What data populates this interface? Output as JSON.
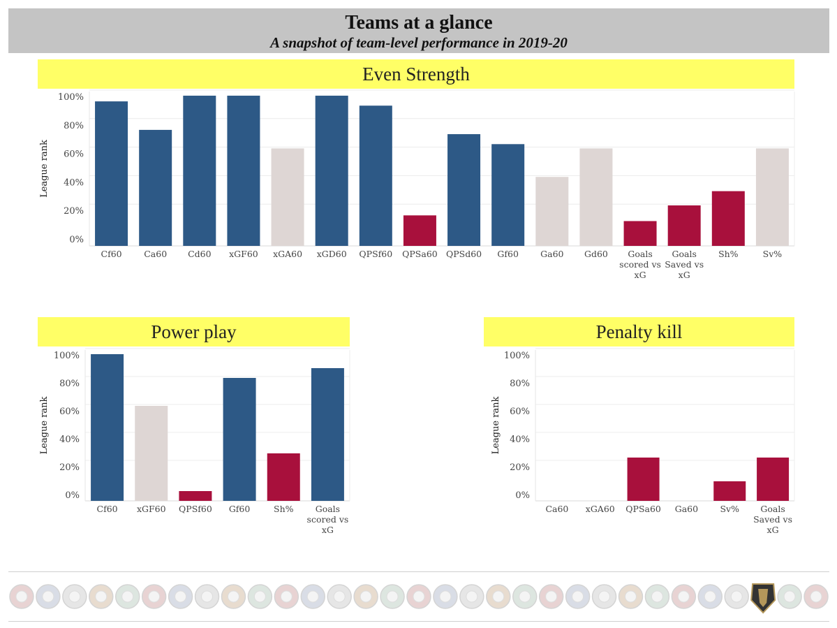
{
  "header": {
    "title": "Teams at a glance",
    "subtitle": "A snapshot of team-level performance in 2019-20"
  },
  "colors": {
    "blue": "#2d5986",
    "grey": "#ded6d4",
    "red": "#a8103c",
    "yellow": "#ffff66"
  },
  "chart_data": [
    {
      "type": "bar",
      "title": "Even Strength",
      "ylabel": "League rank",
      "ylim": [
        0,
        100
      ],
      "yticks": [
        "0%",
        "20%",
        "40%",
        "60%",
        "80%",
        "100%"
      ],
      "categories": [
        "Cf60",
        "Ca60",
        "Cd60",
        "xGF60",
        "xGA60",
        "xGD60",
        "QPSf60",
        "QPSa60",
        "QPSd60",
        "Gf60",
        "Ga60",
        "Gd60",
        "Goals scored vs xG",
        "Goals Saved vs xG",
        "Sh%",
        "Sv%"
      ],
      "values": [
        97,
        77,
        101,
        101,
        64,
        101,
        94,
        17,
        74,
        67,
        44,
        64,
        13,
        24,
        34,
        64
      ],
      "colors": [
        "blue",
        "blue",
        "blue",
        "blue",
        "grey",
        "blue",
        "blue",
        "red",
        "blue",
        "blue",
        "grey",
        "grey",
        "red",
        "red",
        "red",
        "grey"
      ]
    },
    {
      "type": "bar",
      "title": "Power play",
      "ylabel": "League rank",
      "ylim": [
        0,
        100
      ],
      "yticks": [
        "0%",
        "20%",
        "40%",
        "60%",
        "80%",
        "100%"
      ],
      "categories": [
        "Cf60",
        "xGF60",
        "QPSf60",
        "Gf60",
        "Sh%",
        "Goals scored vs xG"
      ],
      "values": [
        101,
        64,
        3,
        84,
        30,
        91
      ],
      "colors": [
        "blue",
        "grey",
        "red",
        "blue",
        "red",
        "blue"
      ]
    },
    {
      "type": "bar",
      "title": "Penalty kill",
      "ylabel": "League rank",
      "ylim": [
        0,
        100
      ],
      "yticks": [
        "0%",
        "20%",
        "40%",
        "60%",
        "80%",
        "100%"
      ],
      "categories": [
        "Ca60",
        "xGA60",
        "QPSa60",
        "Ga60",
        "Sv%",
        "Goals Saved vs xG"
      ],
      "values": [
        0,
        0,
        27,
        0,
        10,
        27
      ],
      "colors": [
        "red",
        "red",
        "red",
        "red",
        "red",
        "red"
      ]
    }
  ],
  "logos": [
    "ducks-icon",
    "coyotes-icon",
    "bruins-icon",
    "sabres-icon",
    "hurricanes-icon",
    "bluejackets-icon",
    "flames-icon",
    "blackhawks-icon",
    "avalanche-icon",
    "stars-icon",
    "redwings-icon",
    "oilers-icon",
    "panthers-icon",
    "kings-icon",
    "wild-icon",
    "canadiens-icon",
    "devils-icon",
    "predators-icon",
    "islanders-icon",
    "rangers-icon",
    "senators-icon",
    "flyers-icon",
    "penguins-icon",
    "sharks-icon",
    "blues-icon",
    "lightning-icon",
    "mapleleafs-icon",
    "canucks-icon",
    "goldenknights-icon",
    "jets-icon",
    "capitals-icon"
  ]
}
